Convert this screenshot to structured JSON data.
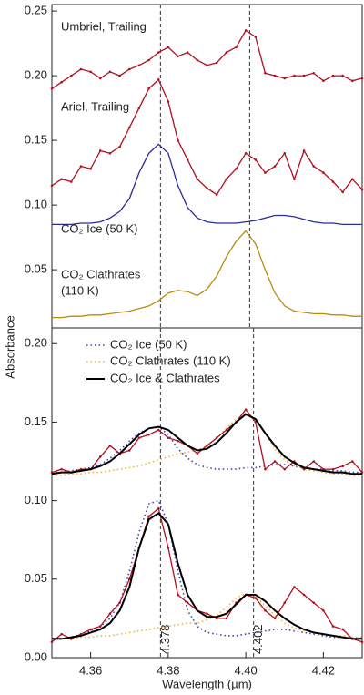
{
  "chart_data": [
    {
      "type": "line",
      "ylabel": "Absorbance",
      "x": [
        4.35,
        4.3525,
        4.355,
        4.3575,
        4.36,
        4.3625,
        4.365,
        4.3675,
        4.37,
        4.3725,
        4.375,
        4.3775,
        4.38,
        4.3825,
        4.385,
        4.3875,
        4.39,
        4.3925,
        4.395,
        4.3975,
        4.4,
        4.4025,
        4.405,
        4.4075,
        4.41,
        4.4125,
        4.415,
        4.4175,
        4.42,
        4.4225,
        4.425,
        4.4275,
        4.43
      ],
      "xlim": [
        4.35,
        4.43
      ],
      "ylim": [
        0.005,
        0.255
      ],
      "yticks": [
        0.25,
        {
          "value": 0.2,
          "label": "0.20"
        },
        0.15,
        {
          "value": 0.1,
          "label": "0.10"
        },
        0.05
      ],
      "vlines": [
        4.378,
        4.401
      ],
      "annotations": [
        "Umbriel, Trailing",
        "Ariel, Trailing",
        "CO₂ Ice (50 K)",
        "CO₂ Clathrates",
        "(110 K)"
      ],
      "series": [
        {
          "color": "#b01020",
          "markers": true,
          "values": [
            0.19,
            0.195,
            0.2,
            0.205,
            0.203,
            0.198,
            0.203,
            0.2,
            0.205,
            0.208,
            0.212,
            0.218,
            0.222,
            0.215,
            0.218,
            0.212,
            0.208,
            0.21,
            0.218,
            0.222,
            0.235,
            0.23,
            0.202,
            0.2,
            0.198,
            0.2,
            0.2,
            0.202,
            0.196,
            0.2,
            0.2,
            0.196,
            0.198
          ]
        },
        {
          "color": "#b01020",
          "markers": true,
          "values": [
            0.115,
            0.12,
            0.118,
            0.13,
            0.128,
            0.142,
            0.14,
            0.145,
            0.16,
            0.175,
            0.19,
            0.197,
            0.18,
            0.15,
            0.135,
            0.12,
            0.113,
            0.108,
            0.12,
            0.128,
            0.14,
            0.135,
            0.125,
            0.13,
            0.14,
            0.12,
            0.142,
            0.13,
            0.125,
            0.118,
            0.11,
            0.12,
            0.112
          ]
        },
        {
          "color": "#2a2a9a",
          "values": [
            0.085,
            0.085,
            0.085,
            0.086,
            0.086,
            0.087,
            0.09,
            0.095,
            0.105,
            0.125,
            0.14,
            0.147,
            0.14,
            0.115,
            0.098,
            0.09,
            0.087,
            0.086,
            0.086,
            0.086,
            0.087,
            0.088,
            0.09,
            0.092,
            0.092,
            0.091,
            0.089,
            0.087,
            0.086,
            0.086,
            0.085,
            0.085,
            0.085
          ]
        },
        {
          "color": "#b88a10",
          "values": [
            0.013,
            0.013,
            0.014,
            0.014,
            0.015,
            0.015,
            0.016,
            0.017,
            0.018,
            0.02,
            0.022,
            0.026,
            0.032,
            0.034,
            0.033,
            0.03,
            0.035,
            0.045,
            0.06,
            0.072,
            0.08,
            0.07,
            0.05,
            0.032,
            0.022,
            0.018,
            0.017,
            0.016,
            0.016,
            0.015,
            0.015,
            0.014,
            0.014
          ]
        }
      ]
    },
    {
      "type": "line",
      "xlabel": "Wavelength (µm)",
      "x": [
        4.35,
        4.3525,
        4.355,
        4.3575,
        4.36,
        4.3625,
        4.365,
        4.3675,
        4.37,
        4.3725,
        4.375,
        4.3775,
        4.38,
        4.3825,
        4.385,
        4.3875,
        4.39,
        4.3925,
        4.395,
        4.3975,
        4.4,
        4.4025,
        4.405,
        4.4075,
        4.41,
        4.4125,
        4.415,
        4.4175,
        4.42,
        4.4225,
        4.425,
        4.4275,
        4.43
      ],
      "xlim": [
        4.35,
        4.43
      ],
      "xticks": [
        4.36,
        4.38,
        {
          "value": 4.4,
          "label": "4.40"
        },
        4.42
      ],
      "ylim": [
        0,
        0.21
      ],
      "yticks": [
        {
          "value": 0.2,
          "label": "0.20"
        },
        0.15,
        {
          "value": 0.1,
          "label": "0.10"
        },
        0.05,
        {
          "value": 0,
          "label": "0.00"
        }
      ],
      "vlines": [
        {
          "value": 4.378,
          "label": "4.378"
        },
        {
          "value": 4.402,
          "label": "4.402"
        }
      ],
      "series": [
        {
          "name": "CO₂ Ice (50 K)",
          "color": "#4040b0",
          "dash": "dot",
          "values": [
            0.118,
            0.118,
            0.119,
            0.12,
            0.121,
            0.123,
            0.127,
            0.132,
            0.138,
            0.143,
            0.146,
            0.147,
            0.142,
            0.133,
            0.127,
            0.123,
            0.121,
            0.12,
            0.12,
            0.12,
            0.121,
            0.121,
            0.122,
            0.123,
            0.123,
            0.122,
            0.121,
            0.12,
            0.12,
            0.119,
            0.119,
            0.118,
            0.118
          ]
        },
        {
          "name": "CO₂ Clathrates (110 K)",
          "color": "#f0b040",
          "dash": "dot",
          "values": [
            0.116,
            0.116,
            0.117,
            0.117,
            0.118,
            0.118,
            0.119,
            0.12,
            0.121,
            0.122,
            0.124,
            0.126,
            0.128,
            0.13,
            0.131,
            0.132,
            0.135,
            0.14,
            0.146,
            0.152,
            0.156,
            0.152,
            0.143,
            0.133,
            0.126,
            0.122,
            0.12,
            0.119,
            0.118,
            0.117,
            0.117,
            0.116,
            0.116
          ]
        },
        {
          "color": "#b01020",
          "markers": true,
          "values": [
            0.118,
            0.12,
            0.118,
            0.12,
            0.12,
            0.128,
            0.135,
            0.13,
            0.132,
            0.14,
            0.142,
            0.145,
            0.14,
            0.138,
            0.135,
            0.13,
            0.135,
            0.14,
            0.145,
            0.15,
            0.158,
            0.15,
            0.12,
            0.125,
            0.12,
            0.125,
            0.12,
            0.125,
            0.12,
            0.12,
            0.122,
            0.125,
            0.118
          ]
        },
        {
          "name": "CO₂ Ice & Clathrates",
          "color": "#000000",
          "width": 2,
          "values": [
            0.117,
            0.118,
            0.118,
            0.119,
            0.12,
            0.122,
            0.125,
            0.13,
            0.136,
            0.142,
            0.146,
            0.147,
            0.145,
            0.14,
            0.135,
            0.132,
            0.133,
            0.137,
            0.143,
            0.15,
            0.155,
            0.152,
            0.143,
            0.135,
            0.128,
            0.124,
            0.121,
            0.12,
            0.119,
            0.118,
            0.118,
            0.117,
            0.117
          ]
        },
        {
          "name": "CO₂ Ice (50 K)",
          "color": "#4040b0",
          "dash": "dot",
          "values": [
            0.012,
            0.012,
            0.013,
            0.015,
            0.017,
            0.02,
            0.025,
            0.035,
            0.055,
            0.08,
            0.098,
            0.1,
            0.085,
            0.055,
            0.03,
            0.02,
            0.016,
            0.015,
            0.014,
            0.014,
            0.015,
            0.016,
            0.017,
            0.018,
            0.018,
            0.017,
            0.016,
            0.015,
            0.014,
            0.013,
            0.013,
            0.012,
            0.012
          ]
        },
        {
          "name": "CO₂ Clathrates (110 K)",
          "color": "#f0b040",
          "dash": "dot",
          "values": [
            0.012,
            0.012,
            0.012,
            0.013,
            0.013,
            0.014,
            0.014,
            0.015,
            0.016,
            0.017,
            0.018,
            0.019,
            0.02,
            0.021,
            0.022,
            0.022,
            0.024,
            0.027,
            0.032,
            0.038,
            0.041,
            0.039,
            0.033,
            0.027,
            0.022,
            0.019,
            0.017,
            0.016,
            0.015,
            0.014,
            0.014,
            0.013,
            0.013
          ]
        },
        {
          "color": "#b01020",
          "markers": true,
          "values": [
            0.01,
            0.015,
            0.012,
            0.015,
            0.018,
            0.02,
            0.028,
            0.035,
            0.05,
            0.07,
            0.09,
            0.095,
            0.07,
            0.04,
            0.035,
            0.03,
            0.028,
            0.025,
            0.025,
            0.035,
            0.04,
            0.038,
            0.03,
            0.025,
            0.035,
            0.045,
            0.04,
            0.035,
            0.03,
            0.02,
            0.018,
            0.012,
            0.01
          ]
        },
        {
          "name": "CO₂ Ice & Clathrates",
          "color": "#000000",
          "width": 2,
          "values": [
            0.012,
            0.012,
            0.013,
            0.014,
            0.016,
            0.018,
            0.022,
            0.03,
            0.045,
            0.07,
            0.088,
            0.092,
            0.085,
            0.06,
            0.04,
            0.03,
            0.026,
            0.026,
            0.028,
            0.034,
            0.04,
            0.04,
            0.036,
            0.03,
            0.025,
            0.021,
            0.018,
            0.016,
            0.015,
            0.014,
            0.013,
            0.012,
            0.012
          ]
        }
      ]
    }
  ]
}
